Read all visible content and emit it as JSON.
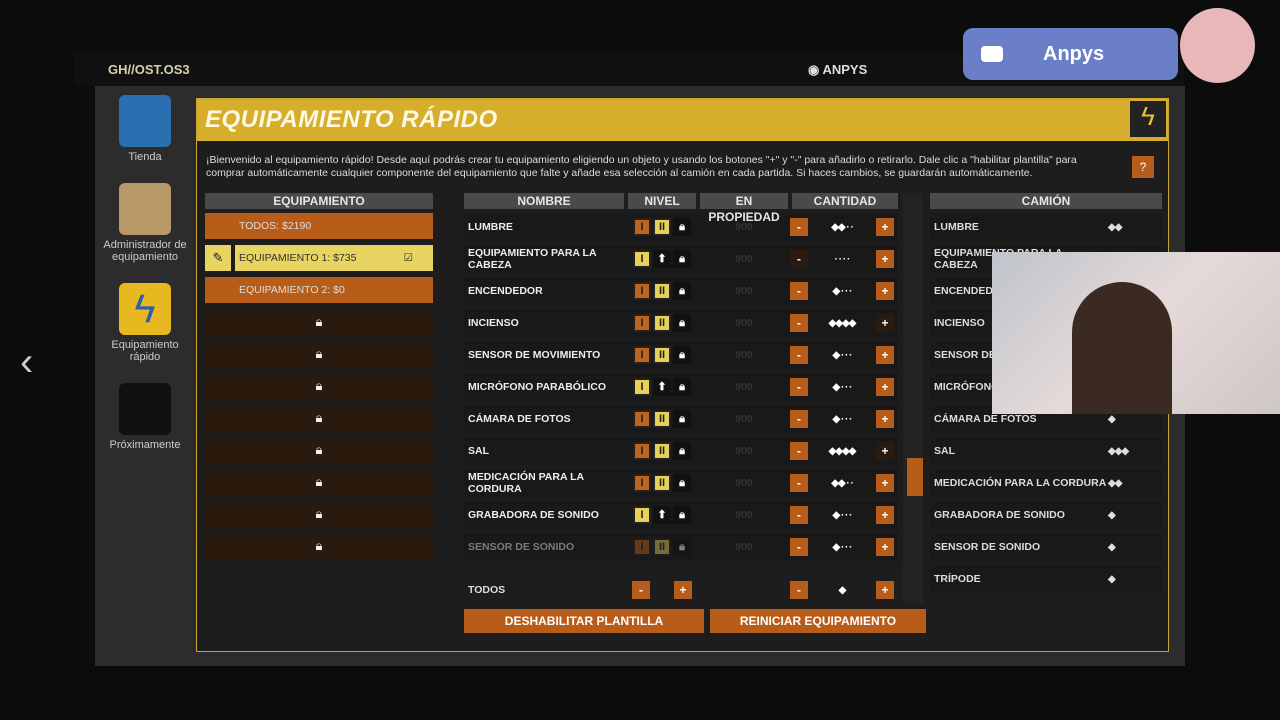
{
  "top": {
    "brand": "GH//OST.OS3",
    "user": "ANPYS"
  },
  "stream": {
    "channel": "Anpys"
  },
  "nav": [
    {
      "label": "Tienda"
    },
    {
      "label": "Administrador de equipamiento"
    },
    {
      "label": "Equipamiento rápido"
    },
    {
      "label": "Próximamente"
    }
  ],
  "panel": {
    "title": "EQUIPAMIENTO RÁPIDO",
    "help": "?",
    "intro": "¡Bienvenido al equipamiento rápido! Desde aquí podrás crear tu equipamiento eligiendo un objeto y usando los botones \"+\" y \"-\" para añadirlo o retirarlo. Dale clic a \"habilitar plantilla\" para comprar automáticamente cualquier componente del equipamiento que falte y añade esa selección al camión en cada partida. Si haces cambios, se guardarán automáticamente."
  },
  "loadouts": {
    "header": "EQUIPAMIENTO",
    "all": "TODOS: $2190",
    "items": [
      {
        "label": "EQUIPAMIENTO 1: $735",
        "selected": true
      },
      {
        "label": "EQUIPAMIENTO 2: $0",
        "selected": false
      }
    ],
    "locked_slots": 8
  },
  "items": {
    "headers": [
      "NOMBRE",
      "NIVEL",
      "EN PROPIEDAD",
      "CANTIDAD"
    ],
    "rows": [
      {
        "name": "LUMBRE",
        "tiers": [
          "I",
          "II",
          "lock"
        ],
        "owned": "900",
        "qty": 2
      },
      {
        "name": "EQUIPAMIENTO PARA LA CABEZA",
        "tiers": [
          "I",
          "up",
          "lock"
        ],
        "owned": "900",
        "qty": 0
      },
      {
        "name": "ENCENDEDOR",
        "tiers": [
          "I",
          "II",
          "lock"
        ],
        "owned": "900",
        "qty": 1
      },
      {
        "name": "INCIENSO",
        "tiers": [
          "I",
          "II",
          "lock"
        ],
        "owned": "900",
        "qty": 4
      },
      {
        "name": "SENSOR DE MOVIMIENTO",
        "tiers": [
          "I",
          "II",
          "lock"
        ],
        "owned": "900",
        "qty": 1
      },
      {
        "name": "MICRÓFONO PARABÓLICO",
        "tiers": [
          "I",
          "up",
          "lock"
        ],
        "owned": "900",
        "qty": 1
      },
      {
        "name": "CÁMARA DE FOTOS",
        "tiers": [
          "I",
          "II",
          "lock"
        ],
        "owned": "900",
        "qty": 1
      },
      {
        "name": "SAL",
        "tiers": [
          "I",
          "II",
          "lock"
        ],
        "owned": "900",
        "qty": 4
      },
      {
        "name": "MEDICACIÓN PARA LA CORDURA",
        "tiers": [
          "I",
          "II",
          "lock"
        ],
        "owned": "900",
        "qty": 2
      },
      {
        "name": "GRABADORA DE SONIDO",
        "tiers": [
          "I",
          "up",
          "lock"
        ],
        "owned": "900",
        "qty": 1
      },
      {
        "name": "SENSOR DE SONIDO",
        "tiers": [
          "I",
          "II",
          "lock"
        ],
        "owned": "900",
        "qty": 1
      }
    ],
    "total_label": "TODOS",
    "total_qty": 1
  },
  "buttons": {
    "disable_template": "DESHABILITAR PLANTILLA",
    "reset": "REINICIAR EQUIPAMIENTO"
  },
  "truck": {
    "header": "CAMIÓN",
    "rows": [
      {
        "name": "LUMBRE",
        "qty": 2
      },
      {
        "name": "EQUIPAMIENTO PARA LA CABEZA",
        "qty": 0
      },
      {
        "name": "ENCENDEDOR",
        "qty": 1
      },
      {
        "name": "INCIENSO",
        "qty": 4
      },
      {
        "name": "SENSOR DE MOVIMIENTO",
        "qty": 1
      },
      {
        "name": "MICRÓFONO PARABÓLICO",
        "qty": 1
      },
      {
        "name": "CÁMARA DE FOTOS",
        "qty": 1
      },
      {
        "name": "SAL",
        "qty": 3
      },
      {
        "name": "MEDICACIÓN PARA LA CORDURA",
        "qty": 2
      },
      {
        "name": "GRABADORA DE SONIDO",
        "qty": 1
      },
      {
        "name": "SENSOR DE SONIDO",
        "qty": 1
      },
      {
        "name": "TRÍPODE",
        "qty": 1
      }
    ]
  }
}
